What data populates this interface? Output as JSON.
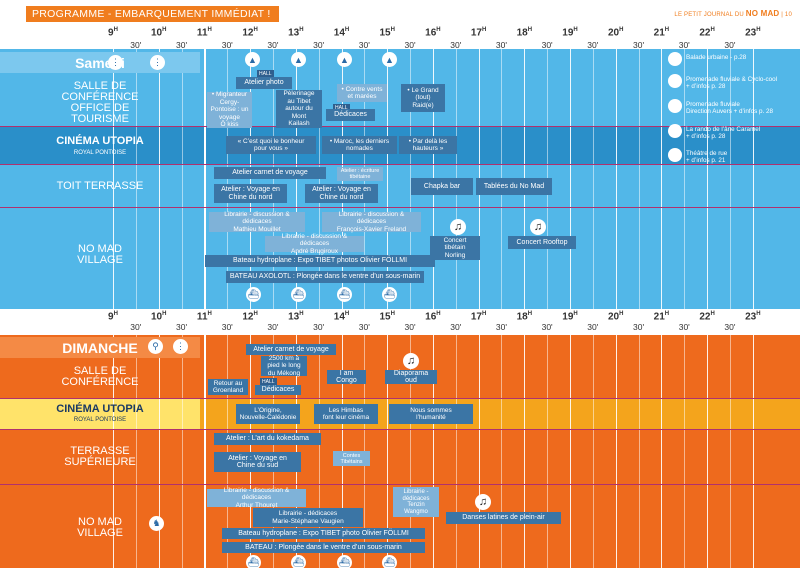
{
  "header": {
    "title": "PROGRAMME - EMBARQUEMENT IMMÉDIAT !",
    "journal": "LE PETIT JOURNAL DU",
    "journal_brand": "NO MAD",
    "page_number": "| 10"
  },
  "hours": [
    "9",
    "10",
    "11",
    "12",
    "13",
    "14",
    "15",
    "16",
    "17",
    "18",
    "19",
    "20",
    "21",
    "22",
    "23"
  ],
  "hour_suffix": "H",
  "half_label": "30'",
  "saturday": {
    "day": "Samedi",
    "rows": {
      "salle": "SALLE DE\nCONFÉRENCE\nOFFICE DE\nTOURISME",
      "utopia": "CINÉMA UTOPIA",
      "utopia_sub": "ROYAL PONTOISE",
      "toit": "TOIT TERRASSE",
      "village": "NO MAD\nVILLAGE"
    },
    "events": {
      "e1": "Atelier photo",
      "e2": "• Migranteur\nCergy-\nPontoise : un\nvoyage\nÔ kiss",
      "e3": "Pèlerinage\nau Tibet\nautour du\nMont\nKailash",
      "e4": "• Contre vents\net marées",
      "e5": "Dédicaces",
      "e6": "• Le Grand\n(tout)\nRaid(e)",
      "e7": "« C’est quoi le bonheur\npour vous »",
      "e8": "• Maroc, les derniers\nnomades",
      "e9": "• Par delà les\nhauteurs »",
      "e10": "Atelier carnet de voyage",
      "e11": "Atelier : écriture\ntibétaine",
      "e12": "Atelier : Voyage en\nChine du nord",
      "e13": "Atelier : Voyage en\nChine du nord",
      "e14": "Chapka bar",
      "e15": "Tablées du No Mad",
      "e16": "Librairie - discussion & dédicaces\nMathieu Mouillet",
      "e17": "Librairie - discussion & dédicaces\nFrançois-Xavier Freland",
      "e18": "Librairie - discussion & dédicaces\nAndré Brugiroux",
      "e19": "Concert\ntibétain\nNorling",
      "e20": "Concert Rooftop",
      "e21": "Bateau hydroplane : Expo TIBET photos Olivier FÖLLMI",
      "e22": "BATEAU AXOLOTL : Plongée dans le ventre d’un sous-marin"
    },
    "hall": "HALL",
    "legend": [
      "Balade urbaine - p.28",
      "Promenade fluviale & Cyclo-cool\n+ d’infos p. 28",
      "Promenade fluviale\nDirection Auvers + d’infos p. 28",
      "La rando de l’âne Caramel\n+ d’infos p. 28",
      "Théâtre de rue\n+ d’infos p. 21"
    ]
  },
  "sunday": {
    "day": "DIMANCHE",
    "rows": {
      "salle": "SALLE DE\nCONFÉRENCE",
      "utopia": "CINÉMA UTOPIA",
      "utopia_sub": "ROYAL PONTOISE",
      "terrasse": "TERRASSE\nSUPÉRIEURE",
      "village": "NO MAD\nVILLAGE"
    },
    "events": {
      "s1": "Atelier carnet de voyage",
      "s2": "2500 km à\npied le long\ndu Mékong",
      "s3": "Retour au\nGroenland",
      "s4": "Dédicaces",
      "s5": "I am Congo",
      "s6": "Diaporama oud",
      "s7": "L’Origine,\nNouvelle-Calédonie",
      "s8": "Les Himbas\nfont leur cinéma",
      "s9": "Nous sommes\nl’humanité",
      "s10": "Atelier : L’art du kokedama",
      "s11": "Atelier : Voyage en\nChine du sud",
      "s12": "Contes\nTibétains",
      "s13": "Librairie - discussion & dédicaces\nArthur Thouret",
      "s14": "Librairie - dédicaces\nMarie-Stéphane Vaugien",
      "s15": "Librairie - dédicaces\nTenzin\nWangmo",
      "s16": "Danses latines de plein-air",
      "s17": "Bateau hydroplane : Expo TIBET photo Olivier FÖLLMI",
      "s18": "BATEAU : Plongée dans le ventre d’un sous-marin"
    },
    "hall": "HALL"
  },
  "colors": {
    "saturday_bg": "#52b7e8",
    "sunday_bg": "#ee6a1d",
    "accent": "#f07d1e",
    "event_box": "#3b75a5",
    "utopia_sat": "#2a8fc9",
    "utopia_sun": "#f4a41c"
  }
}
